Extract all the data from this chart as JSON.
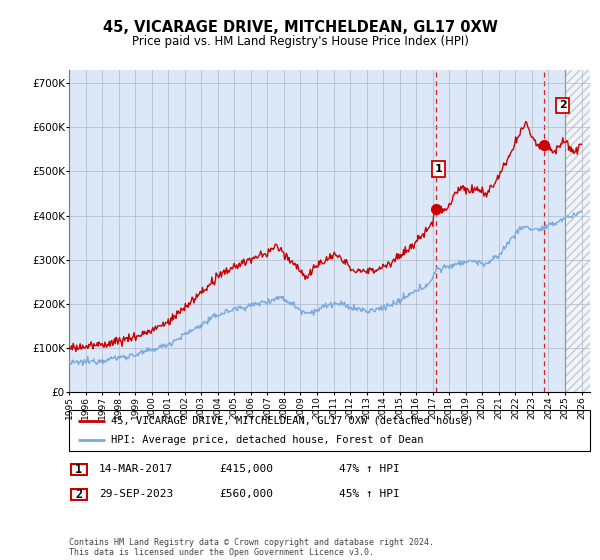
{
  "title": "45, VICARAGE DRIVE, MITCHELDEAN, GL17 0XW",
  "subtitle": "Price paid vs. HM Land Registry's House Price Index (HPI)",
  "ylim": [
    0,
    730000
  ],
  "xlim_start": 1995.0,
  "xlim_end": 2026.5,
  "hatch_start": 2025.0,
  "hpi_color": "#7aaadd",
  "price_color": "#cc0000",
  "purchase1_x": 2017.21,
  "purchase1_y": 415000,
  "purchase2_x": 2023.75,
  "purchase2_y": 560000,
  "vline1_x": 2017.21,
  "vline2_x": 2023.75,
  "legend_label1": "45, VICARAGE DRIVE, MITCHELDEAN, GL17 0XW (detached house)",
  "legend_label2": "HPI: Average price, detached house, Forest of Dean",
  "note1_num": "1",
  "note1_date": "14-MAR-2017",
  "note1_price": "£415,000",
  "note1_hpi": "47% ↑ HPI",
  "note2_num": "2",
  "note2_date": "29-SEP-2023",
  "note2_price": "£560,000",
  "note2_hpi": "45% ↑ HPI",
  "footer": "Contains HM Land Registry data © Crown copyright and database right 2024.\nThis data is licensed under the Open Government Licence v3.0.",
  "bg_color": "#dce8f8",
  "plot_bg": "#ffffff",
  "grid_color": "#b0b8c8"
}
